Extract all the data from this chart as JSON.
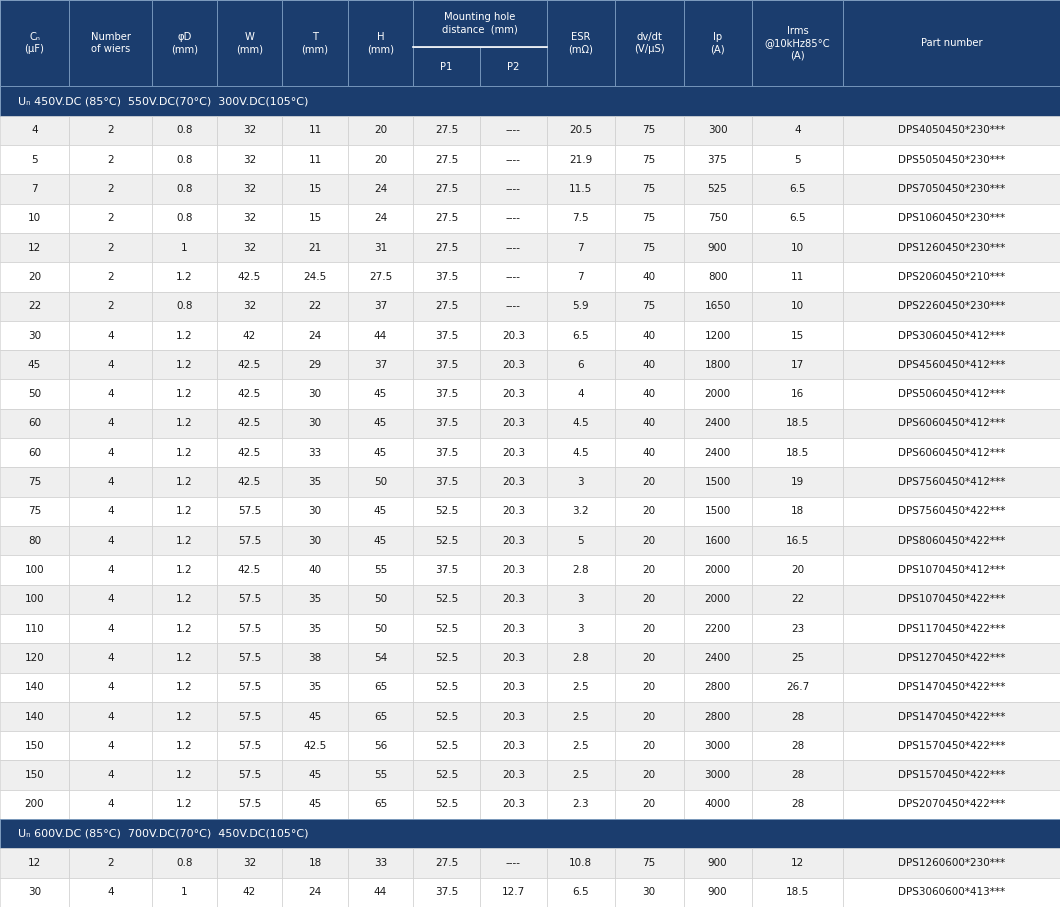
{
  "header_bg": "#1b3d6e",
  "header_text_color": "#ffffff",
  "row_bg_odd": "#efefef",
  "row_bg_even": "#ffffff",
  "section_bg": "#1b3d6e",
  "section_text": "#ffffff",
  "border_color": "#aaaaaa",
  "data_text_color": "#1a1a1a",
  "section1_label": "Uₙ 450V.DC (85°C)  550V.DC(70°C)  300V.DC(105°C)",
  "section2_label": "Uₙ 600V.DC (85°C)  700V.DC(70°C)  450V.DC(105°C)",
  "col_labels": [
    "Cₙ\n(μF)",
    "Number\nof wiers",
    "φD\n(mm)",
    "W\n(mm)",
    "T\n(mm)",
    "H\n(mm)",
    "P1",
    "P2",
    "ESR\n(mΩ)",
    "dv/dt\n(V/μS)",
    "Ip\n(A)",
    "Irms\n@10kHz85°C\n(A)",
    "Part number"
  ],
  "mount_label": "Mounting hole\ndistance  (mm)",
  "rows_section1": [
    [
      "4",
      "2",
      "0.8",
      "32",
      "11",
      "20",
      "27.5",
      "----",
      "20.5",
      "75",
      "300",
      "4",
      "DPS4050450*230***"
    ],
    [
      "5",
      "2",
      "0.8",
      "32",
      "11",
      "20",
      "27.5",
      "----",
      "21.9",
      "75",
      "375",
      "5",
      "DPS5050450*230***"
    ],
    [
      "7",
      "2",
      "0.8",
      "32",
      "15",
      "24",
      "27.5",
      "----",
      "11.5",
      "75",
      "525",
      "6.5",
      "DPS7050450*230***"
    ],
    [
      "10",
      "2",
      "0.8",
      "32",
      "15",
      "24",
      "27.5",
      "----",
      "7.5",
      "75",
      "750",
      "6.5",
      "DPS1060450*230***"
    ],
    [
      "12",
      "2",
      "1",
      "32",
      "21",
      "31",
      "27.5",
      "----",
      "7",
      "75",
      "900",
      "10",
      "DPS1260450*230***"
    ],
    [
      "20",
      "2",
      "1.2",
      "42.5",
      "24.5",
      "27.5",
      "37.5",
      "----",
      "7",
      "40",
      "800",
      "11",
      "DPS2060450*210***"
    ],
    [
      "22",
      "2",
      "0.8",
      "32",
      "22",
      "37",
      "27.5",
      "----",
      "5.9",
      "75",
      "1650",
      "10",
      "DPS2260450*230***"
    ],
    [
      "30",
      "4",
      "1.2",
      "42",
      "24",
      "44",
      "37.5",
      "20.3",
      "6.5",
      "40",
      "1200",
      "15",
      "DPS3060450*412***"
    ],
    [
      "45",
      "4",
      "1.2",
      "42.5",
      "29",
      "37",
      "37.5",
      "20.3",
      "6",
      "40",
      "1800",
      "17",
      "DPS4560450*412***"
    ],
    [
      "50",
      "4",
      "1.2",
      "42.5",
      "30",
      "45",
      "37.5",
      "20.3",
      "4",
      "40",
      "2000",
      "16",
      "DPS5060450*412***"
    ],
    [
      "60",
      "4",
      "1.2",
      "42.5",
      "30",
      "45",
      "37.5",
      "20.3",
      "4.5",
      "40",
      "2400",
      "18.5",
      "DPS6060450*412***"
    ],
    [
      "60",
      "4",
      "1.2",
      "42.5",
      "33",
      "45",
      "37.5",
      "20.3",
      "4.5",
      "40",
      "2400",
      "18.5",
      "DPS6060450*412***"
    ],
    [
      "75",
      "4",
      "1.2",
      "42.5",
      "35",
      "50",
      "37.5",
      "20.3",
      "3",
      "20",
      "1500",
      "19",
      "DPS7560450*412***"
    ],
    [
      "75",
      "4",
      "1.2",
      "57.5",
      "30",
      "45",
      "52.5",
      "20.3",
      "3.2",
      "20",
      "1500",
      "18",
      "DPS7560450*422***"
    ],
    [
      "80",
      "4",
      "1.2",
      "57.5",
      "30",
      "45",
      "52.5",
      "20.3",
      "5",
      "20",
      "1600",
      "16.5",
      "DPS8060450*422***"
    ],
    [
      "100",
      "4",
      "1.2",
      "42.5",
      "40",
      "55",
      "37.5",
      "20.3",
      "2.8",
      "20",
      "2000",
      "20",
      "DPS1070450*412***"
    ],
    [
      "100",
      "4",
      "1.2",
      "57.5",
      "35",
      "50",
      "52.5",
      "20.3",
      "3",
      "20",
      "2000",
      "22",
      "DPS1070450*422***"
    ],
    [
      "110",
      "4",
      "1.2",
      "57.5",
      "35",
      "50",
      "52.5",
      "20.3",
      "3",
      "20",
      "2200",
      "23",
      "DPS1170450*422***"
    ],
    [
      "120",
      "4",
      "1.2",
      "57.5",
      "38",
      "54",
      "52.5",
      "20.3",
      "2.8",
      "20",
      "2400",
      "25",
      "DPS1270450*422***"
    ],
    [
      "140",
      "4",
      "1.2",
      "57.5",
      "35",
      "65",
      "52.5",
      "20.3",
      "2.5",
      "20",
      "2800",
      "26.7",
      "DPS1470450*422***"
    ],
    [
      "140",
      "4",
      "1.2",
      "57.5",
      "45",
      "65",
      "52.5",
      "20.3",
      "2.5",
      "20",
      "2800",
      "28",
      "DPS1470450*422***"
    ],
    [
      "150",
      "4",
      "1.2",
      "57.5",
      "42.5",
      "56",
      "52.5",
      "20.3",
      "2.5",
      "20",
      "3000",
      "28",
      "DPS1570450*422***"
    ],
    [
      "150",
      "4",
      "1.2",
      "57.5",
      "45",
      "55",
      "52.5",
      "20.3",
      "2.5",
      "20",
      "3000",
      "28",
      "DPS1570450*422***"
    ],
    [
      "200",
      "4",
      "1.2",
      "57.5",
      "45",
      "65",
      "52.5",
      "20.3",
      "2.3",
      "20",
      "4000",
      "28",
      "DPS2070450*422***"
    ]
  ],
  "rows_section2": [
    [
      "12",
      "2",
      "0.8",
      "32",
      "18",
      "33",
      "27.5",
      "----",
      "10.8",
      "75",
      "900",
      "12",
      "DPS1260600*230***"
    ],
    [
      "30",
      "4",
      "1",
      "42",
      "24",
      "44",
      "37.5",
      "12.7",
      "6.5",
      "30",
      "900",
      "18.5",
      "DPS3060600*413***"
    ]
  ]
}
